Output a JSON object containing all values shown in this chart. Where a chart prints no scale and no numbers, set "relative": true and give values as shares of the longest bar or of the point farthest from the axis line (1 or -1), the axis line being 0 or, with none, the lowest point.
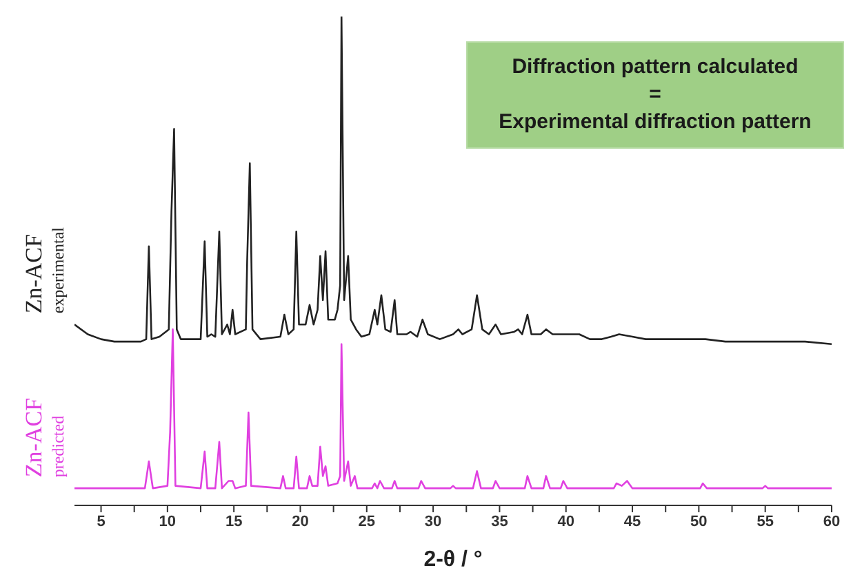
{
  "chart_data": {
    "type": "line",
    "relative": true,
    "xlabel": "2-θ / °",
    "annotations": [
      "Diffraction pattern calculated\n=\nExperimental diffraction pattern"
    ],
    "xlim": [
      3,
      60
    ],
    "xticks": [
      5,
      {
        "value": 7.5,
        "label": null
      },
      10,
      {
        "value": 12.5,
        "label": null
      },
      15,
      {
        "value": 17.5,
        "label": null
      },
      20,
      {
        "value": 22.5,
        "label": null
      },
      25,
      {
        "value": 27.5,
        "label": null
      },
      30,
      {
        "value": 32.5,
        "label": null
      },
      35,
      {
        "value": 37.5,
        "label": null
      },
      40,
      {
        "value": 42.5,
        "label": null
      },
      45,
      {
        "value": 47.5,
        "label": null
      },
      50,
      {
        "value": 52.5,
        "label": null
      },
      55,
      {
        "value": 57.5,
        "label": null
      },
      60
    ],
    "grid": false,
    "legend": false,
    "marker": "none",
    "line_style": "solid",
    "series": [
      {
        "name": "Zn-ACF experimental",
        "color": "#222222",
        "x": [
          3,
          4,
          5,
          6,
          8,
          8.4,
          8.6,
          8.8,
          9.4,
          10.1,
          10.3,
          10.5,
          10.7,
          11,
          12.5,
          12.8,
          13.0,
          13.3,
          13.6,
          13.9,
          14.1,
          14.5,
          14.7,
          14.9,
          15.1,
          15.9,
          16.0,
          16.2,
          16.4,
          17,
          18.5,
          18.8,
          19.1,
          19.5,
          19.7,
          19.9,
          20.4,
          20.7,
          21.0,
          21.3,
          21.5,
          21.7,
          21.9,
          22.1,
          22.6,
          22.8,
          23.0,
          23.1,
          23.3,
          23.6,
          23.8,
          24.2,
          24.6,
          25.2,
          25.6,
          25.8,
          26.1,
          26.4,
          26.8,
          27.1,
          27.3,
          28,
          28.3,
          28.8,
          29.2,
          29.6,
          30.5,
          31.5,
          31.9,
          32.2,
          32.9,
          33.3,
          33.7,
          34.2,
          34.7,
          35.1,
          36.1,
          36.4,
          36.7,
          37.1,
          37.4,
          38.1,
          38.5,
          39,
          40,
          41,
          41.8,
          42.7,
          43.4,
          44,
          45,
          46,
          47,
          48,
          49.5,
          50.5,
          52,
          55,
          58,
          60
        ],
        "values": [
          0.37,
          0.35,
          0.34,
          0.335,
          0.335,
          0.34,
          0.53,
          0.34,
          0.345,
          0.36,
          0.6,
          0.77,
          0.36,
          0.34,
          0.34,
          0.54,
          0.345,
          0.35,
          0.345,
          0.56,
          0.35,
          0.37,
          0.35,
          0.4,
          0.35,
          0.36,
          0.5,
          0.7,
          0.36,
          0.34,
          0.345,
          0.39,
          0.35,
          0.36,
          0.56,
          0.37,
          0.37,
          0.41,
          0.37,
          0.4,
          0.51,
          0.42,
          0.52,
          0.38,
          0.38,
          0.4,
          0.45,
          1.0,
          0.42,
          0.51,
          0.38,
          0.36,
          0.345,
          0.35,
          0.4,
          0.37,
          0.43,
          0.36,
          0.355,
          0.42,
          0.35,
          0.35,
          0.355,
          0.345,
          0.38,
          0.35,
          0.34,
          0.35,
          0.36,
          0.35,
          0.36,
          0.43,
          0.36,
          0.35,
          0.37,
          0.35,
          0.355,
          0.36,
          0.35,
          0.39,
          0.35,
          0.35,
          0.36,
          0.35,
          0.35,
          0.35,
          0.34,
          0.34,
          0.345,
          0.35,
          0.345,
          0.34,
          0.34,
          0.34,
          0.34,
          0.34,
          0.335,
          0.335,
          0.335,
          0.33
        ]
      },
      {
        "name": "Zn-ACF predicted",
        "color": "#e040e0",
        "x": [
          3,
          8.3,
          8.6,
          8.9,
          10.0,
          10.2,
          10.4,
          10.6,
          12.5,
          12.8,
          13.0,
          13.6,
          13.9,
          14.1,
          14.6,
          14.9,
          15.1,
          15.9,
          16.1,
          16.3,
          18.5,
          18.7,
          18.9,
          19.5,
          19.7,
          19.9,
          20.5,
          20.7,
          20.9,
          21.3,
          21.5,
          21.7,
          21.9,
          22.1,
          22.8,
          23.0,
          23.1,
          23.3,
          23.6,
          23.8,
          24.1,
          24.3,
          25.4,
          25.6,
          25.8,
          26.0,
          26.3,
          26.9,
          27.1,
          27.3,
          28.9,
          29.1,
          29.4,
          31.3,
          31.5,
          31.7,
          33.0,
          33.3,
          33.6,
          34.5,
          34.7,
          35,
          36.9,
          37.1,
          37.4,
          38.3,
          38.5,
          38.8,
          39.6,
          39.8,
          40.1,
          43.6,
          43.8,
          44.2,
          44.6,
          45,
          50.1,
          50.3,
          50.6,
          54.8,
          55,
          55.2,
          60
        ],
        "values": [
          0.035,
          0.035,
          0.09,
          0.035,
          0.04,
          0.15,
          0.36,
          0.04,
          0.035,
          0.11,
          0.035,
          0.035,
          0.13,
          0.035,
          0.05,
          0.05,
          0.035,
          0.04,
          0.19,
          0.04,
          0.035,
          0.06,
          0.035,
          0.035,
          0.1,
          0.035,
          0.035,
          0.06,
          0.04,
          0.04,
          0.12,
          0.06,
          0.08,
          0.04,
          0.045,
          0.06,
          0.33,
          0.05,
          0.09,
          0.04,
          0.06,
          0.035,
          0.035,
          0.045,
          0.035,
          0.05,
          0.035,
          0.035,
          0.05,
          0.035,
          0.035,
          0.05,
          0.035,
          0.035,
          0.04,
          0.035,
          0.035,
          0.07,
          0.035,
          0.035,
          0.05,
          0.035,
          0.035,
          0.06,
          0.035,
          0.035,
          0.06,
          0.035,
          0.035,
          0.05,
          0.035,
          0.035,
          0.045,
          0.04,
          0.05,
          0.035,
          0.035,
          0.045,
          0.035,
          0.035,
          0.04,
          0.035,
          0.035
        ]
      }
    ]
  }
}
